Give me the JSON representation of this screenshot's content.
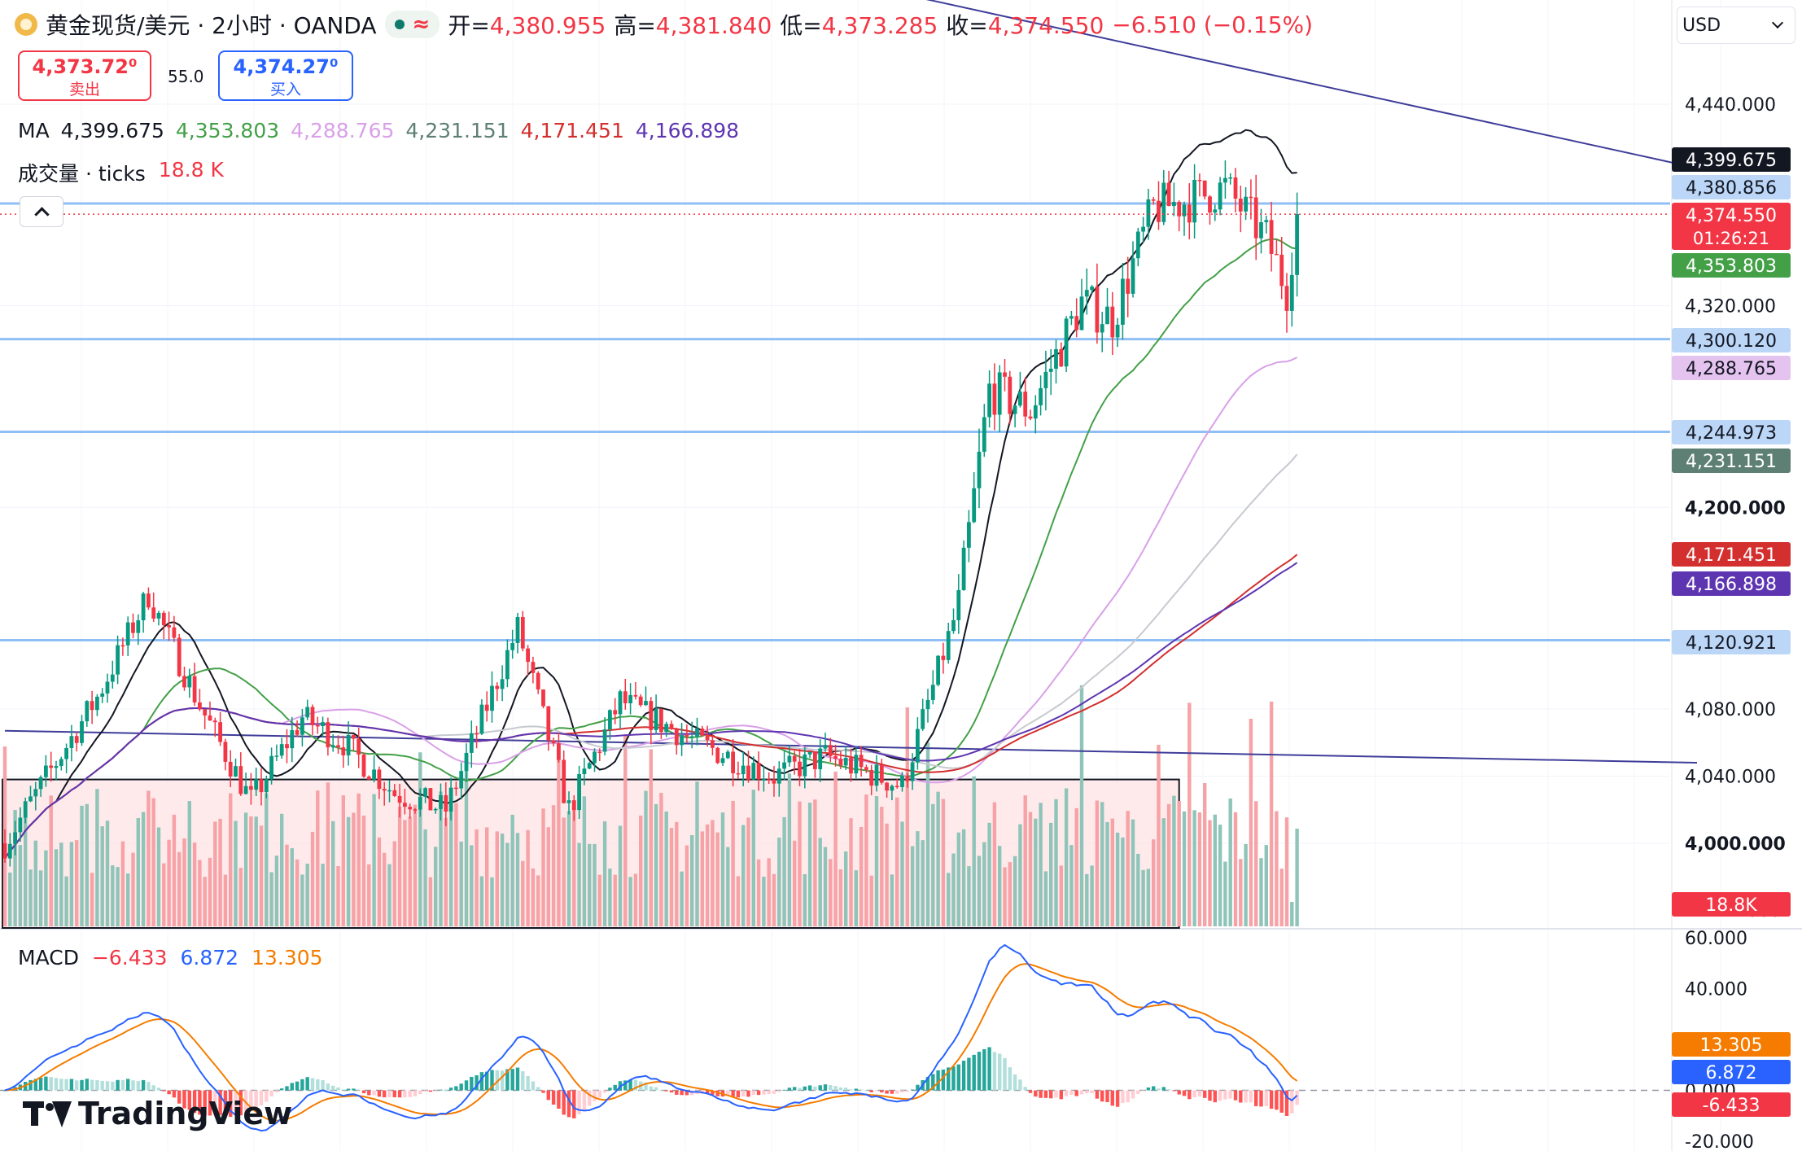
{
  "header": {
    "symbol": "黄金现货/美元 · 2小时 · OANDA",
    "ohlc": [
      {
        "k": "开=",
        "v": "4,380.955"
      },
      {
        "k": "高=",
        "v": "4,381.840"
      },
      {
        "k": "低=",
        "v": "4,373.285"
      },
      {
        "k": "收=",
        "v": "4,374.550"
      },
      {
        "k": "",
        "v": "−6.510 (−0.15%)"
      }
    ]
  },
  "trade": {
    "sell_price": "4,373.72⁰",
    "sell_label": "卖出",
    "spread": "55.0",
    "buy_price": "4,374.27⁰",
    "buy_label": "买入"
  },
  "currency": "USD",
  "brand": "TradingView",
  "ma_legend": {
    "label": "MA",
    "values": [
      {
        "text": "4,399.675",
        "color": "#131722"
      },
      {
        "text": "4,353.803",
        "color": "#43a047"
      },
      {
        "text": "4,288.765",
        "color": "#d9a0e8"
      },
      {
        "text": "4,231.151",
        "color": "#5d7f74"
      },
      {
        "text": "4,171.451",
        "color": "#d32f2f"
      },
      {
        "text": "4,166.898",
        "color": "#5e35b1"
      }
    ]
  },
  "volume_legend": {
    "label": "成交量 · ticks",
    "value": "18.8 K"
  },
  "macd_legend": {
    "label": "MACD",
    "hist": "−6.433",
    "macd": "6.872",
    "signal": "13.305"
  },
  "chart_data": {
    "type": "candlestick",
    "price_axis": {
      "min": 3990,
      "max": 4520,
      "ticks": [
        {
          "v": 4440,
          "label": "4,440.000",
          "bold": false
        },
        {
          "v": 4320,
          "label": "4,320.000",
          "bold": false
        },
        {
          "v": 4200,
          "label": "4,200.000",
          "bold": true
        },
        {
          "v": 4080,
          "label": "4,080.000",
          "bold": false
        },
        {
          "v": 4040,
          "label": "4,040.000",
          "bold": false
        },
        {
          "v": 4000,
          "label": "4,000.000",
          "bold": true
        }
      ],
      "partial_bottom_label": "000"
    },
    "macd_axis": {
      "min": -20,
      "max": 60,
      "ticks": [
        {
          "v": 60,
          "label": "60.000"
        },
        {
          "v": 40,
          "label": "40.000"
        },
        {
          "v": 0,
          "label": "0.000"
        },
        {
          "v": -20,
          "label": "-20.000"
        }
      ]
    },
    "price_tags": [
      {
        "v": 4399.675,
        "label": "4,399.675",
        "bg": "#131722",
        "fg": "#ffffff"
      },
      {
        "v": 4380.856,
        "label": "4,380.856",
        "bg": "#bbd6f7",
        "fg": "#131722"
      },
      {
        "v": 4374.55,
        "label": "4,374.550",
        "sub": "01:26:21",
        "bg": "#f23645",
        "fg": "#ffffff"
      },
      {
        "v": 4353.803,
        "label": "4,353.803",
        "bg": "#43a047",
        "fg": "#ffffff"
      },
      {
        "v": 4300.12,
        "label": "4,300.120",
        "bg": "#bbd6f7",
        "fg": "#131722"
      },
      {
        "v": 4288.765,
        "label": "4,288.765",
        "bg": "#e5c3ef",
        "fg": "#131722"
      },
      {
        "v": 4244.973,
        "label": "4,244.973",
        "bg": "#bbd6f7",
        "fg": "#131722"
      },
      {
        "v": 4231.151,
        "label": "4,231.151",
        "bg": "#5d7f74",
        "fg": "#ffffff"
      },
      {
        "v": 4171.451,
        "label": "4,171.451",
        "bg": "#d32f2f",
        "fg": "#ffffff"
      },
      {
        "v": 4166.898,
        "label": "4,166.898",
        "bg": "#5e35b1",
        "fg": "#ffffff"
      },
      {
        "v": 4120.921,
        "label": "4,120.921",
        "bg": "#bbd6f7",
        "fg": "#131722"
      }
    ],
    "volume_tag": {
      "label": "18.8K",
      "bg": "#f23645",
      "fg": "#ffffff"
    },
    "macd_tags": [
      {
        "v": 13.305,
        "label": "13.305",
        "bg": "#f57c00",
        "fg": "#ffffff"
      },
      {
        "v": 6.872,
        "label": "6.872",
        "bg": "#2962ff",
        "fg": "#ffffff"
      },
      {
        "v": -6.433,
        "label": "-6.433",
        "bg": "#f23645",
        "fg": "#ffffff"
      }
    ],
    "horizontal_levels": [
      4380.856,
      4300.12,
      4244.973,
      4120.921
    ],
    "last_price": 4374.55,
    "consolidation_box": {
      "x_start": 0,
      "x_end": 229,
      "top": 4038
    },
    "key_points": [
      [
        0,
        4000
      ],
      [
        18,
        4087
      ],
      [
        28,
        4148
      ],
      [
        38,
        4082
      ],
      [
        48,
        4025
      ],
      [
        58,
        4075
      ],
      [
        66,
        4060
      ],
      [
        76,
        4030
      ],
      [
        86,
        4020
      ],
      [
        100,
        4128
      ],
      [
        110,
        4020
      ],
      [
        120,
        4085
      ],
      [
        135,
        4060
      ],
      [
        150,
        4040
      ],
      [
        160,
        4052
      ],
      [
        175,
        4034
      ],
      [
        186,
        4142
      ],
      [
        192,
        4270
      ],
      [
        200,
        4258
      ],
      [
        210,
        4322
      ],
      [
        216,
        4312
      ],
      [
        224,
        4378
      ],
      [
        230,
        4382
      ],
      [
        238,
        4390
      ],
      [
        246,
        4360
      ],
      [
        250,
        4330
      ],
      [
        252,
        4374
      ]
    ],
    "ma_series": [
      {
        "period": 20,
        "color": "#131722",
        "end": 4399.675
      },
      {
        "period": 50,
        "color": "#43a047",
        "end": 4353.803
      },
      {
        "period": 100,
        "color": "#d9a0e8",
        "end": 4288.765
      },
      {
        "period": 150,
        "color": "#c6c9cf",
        "end": 4231.151
      },
      {
        "period": 200,
        "color": "#d32f2f",
        "end": 4171.451
      },
      {
        "period": 250,
        "color": "#5e35b1",
        "end": 4166.898
      }
    ],
    "trendlines": [
      {
        "p1": [
          0,
          4067
        ],
        "p2": [
          330,
          4048
        ],
        "color": "#3f3d99"
      },
      {
        "p1": [
          146,
          4525
        ],
        "p2": [
          330,
          4402
        ],
        "color": "#3f3d99"
      }
    ]
  }
}
